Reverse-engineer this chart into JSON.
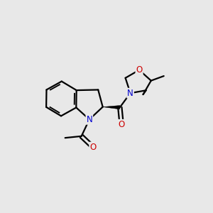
{
  "background_color": "#e8e8e8",
  "bond_color": "#000000",
  "N_color": "#0000cd",
  "O_color": "#cc0000",
  "bond_lw": 1.6,
  "figsize": [
    3.0,
    3.0
  ],
  "dpi": 100,
  "xlim": [
    0,
    10
  ],
  "ylim": [
    0,
    10
  ],
  "font_size": 8.5
}
